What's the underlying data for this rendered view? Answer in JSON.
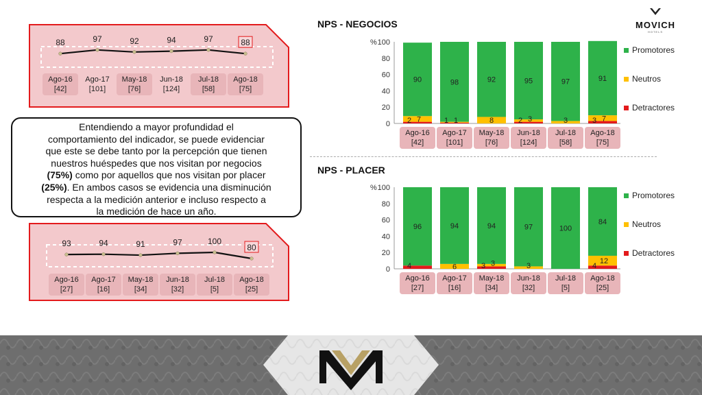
{
  "brand": {
    "name": "MOVICH",
    "tagline": "HOTELS"
  },
  "summary": {
    "line1": "Entendiendo a mayor profundidad el",
    "line2": "comportamiento del indicador, se puede evidenciar",
    "line3": "que este se debe tanto por la percepción que tienen",
    "line4": "nuestros huéspedes que nos visitan por negocios",
    "line5_bold": "(75%)",
    "line5_rest": " como por aquellos que nos visitan por placer",
    "line6_bold": "(25%)",
    "line6_rest": ". En ambos casos se evidencia una disminución",
    "line7": "respecta a la medición anterior e incluso respecto a",
    "line8": "la medición de hace un año."
  },
  "chart_data": [
    {
      "id": "negocios-line",
      "type": "line",
      "categories": [
        "Ago-16",
        "Ago-17",
        "May-18",
        "Jun-18",
        "Jul-18",
        "Ago-18"
      ],
      "sample_sizes": [
        "[42]",
        "[101]",
        "[76]",
        "[124]",
        "[58]",
        "[75]"
      ],
      "values": [
        88,
        97,
        92,
        94,
        97,
        88
      ],
      "highlighted_index": 5
    },
    {
      "id": "placer-line",
      "type": "line",
      "categories": [
        "Ago-16",
        "Ago-17",
        "May-18",
        "Jun-18",
        "Jul-18",
        "Ago-18"
      ],
      "sample_sizes": [
        "[27]",
        "[16]",
        "[34]",
        "[32]",
        "[5]",
        "[25]"
      ],
      "values": [
        93,
        94,
        91,
        97,
        100,
        80
      ],
      "highlighted_index": 5
    },
    {
      "id": "negocios-bar",
      "type": "bar",
      "stacked": true,
      "title": "NPS - NEGOCIOS",
      "ylabel": "%",
      "ylim": [
        0,
        100
      ],
      "yticks": [
        0,
        20,
        40,
        60,
        80,
        100
      ],
      "categories": [
        "Ago-16",
        "Ago-17",
        "May-18",
        "Jun-18",
        "Jul-18",
        "Ago-18"
      ],
      "sample_sizes": [
        "[42]",
        "[101]",
        "[76]",
        "[124]",
        "[58]",
        "[75]"
      ],
      "series": [
        {
          "name": "Detractores",
          "color": "#e31a1c",
          "values": [
            2,
            1,
            0,
            2,
            0,
            3
          ]
        },
        {
          "name": "Neutros",
          "color": "#ffc000",
          "values": [
            7,
            1,
            8,
            3,
            3,
            7
          ]
        },
        {
          "name": "Promotores",
          "color": "#2eb24a",
          "values": [
            90,
            98,
            92,
            95,
            97,
            91
          ]
        }
      ],
      "legend": "right"
    },
    {
      "id": "placer-bar",
      "type": "bar",
      "stacked": true,
      "title": "NPS - PLACER",
      "ylabel": "%",
      "ylim": [
        0,
        100
      ],
      "yticks": [
        0,
        20,
        40,
        60,
        80,
        100
      ],
      "categories": [
        "Ago-16",
        "Ago-17",
        "May-18",
        "Jun-18",
        "Jul-18",
        "Ago-18"
      ],
      "sample_sizes": [
        "[27]",
        "[16]",
        "[34]",
        "[32]",
        "[5]",
        "[25]"
      ],
      "series": [
        {
          "name": "Detractores",
          "color": "#e31a1c",
          "values": [
            4,
            0,
            3,
            0,
            0,
            4
          ]
        },
        {
          "name": "Neutros",
          "color": "#ffc000",
          "values": [
            0,
            6,
            3,
            3,
            0,
            12
          ]
        },
        {
          "name": "Promotores",
          "color": "#2eb24a",
          "values": [
            96,
            94,
            94,
            97,
            100,
            84
          ]
        }
      ],
      "legend": "right"
    }
  ],
  "colors": {
    "accent_red": "#e31a1c",
    "panel_pink": "#f3c9cc",
    "label_pink": "#e8b5b9",
    "marker": "#c8bd8f"
  }
}
